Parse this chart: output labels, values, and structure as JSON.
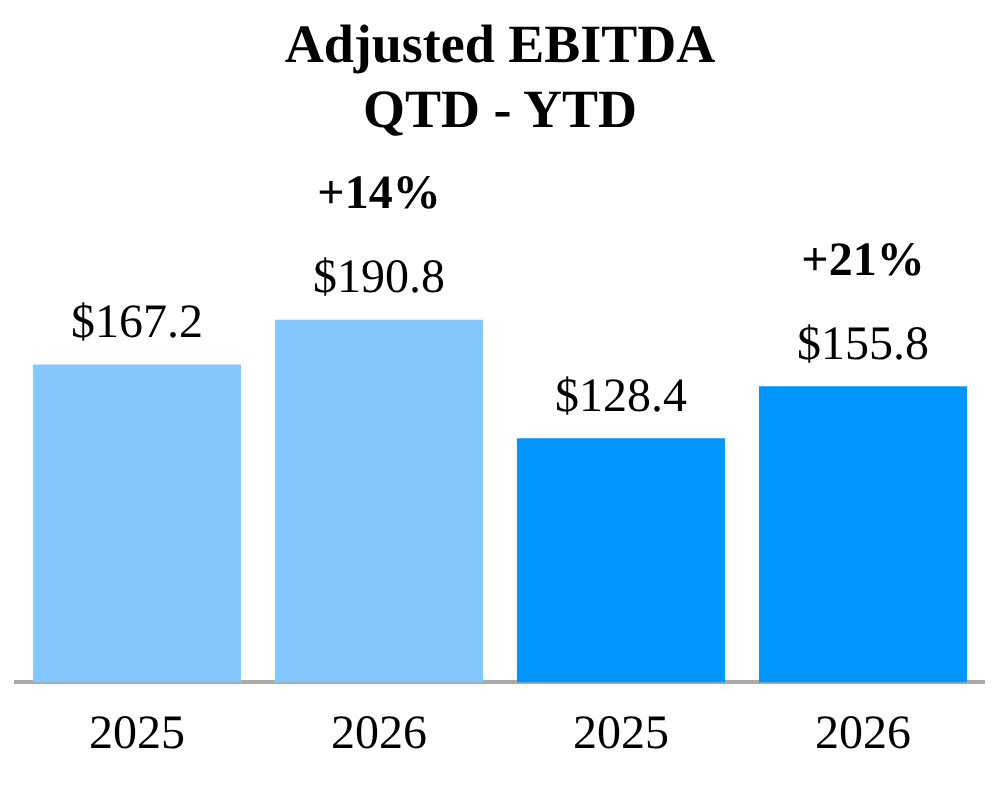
{
  "chart_data": {
    "type": "bar",
    "title": "Adjusted EBITDA\nQTD - YTD",
    "categories": [
      "2025",
      "2026",
      "2025",
      "2026"
    ],
    "values": [
      167.2,
      190.8,
      128.4,
      155.8
    ],
    "colors": [
      "#85c8ff",
      "#85c8ff",
      "#0096ff",
      "#0096ff"
    ],
    "value_labels": [
      "$167.2",
      "$190.8",
      "$128.4",
      "$155.8"
    ],
    "annotations": [
      "+14%",
      "+21%"
    ],
    "tick_labels": "x",
    "grid": false,
    "legend": false
  }
}
